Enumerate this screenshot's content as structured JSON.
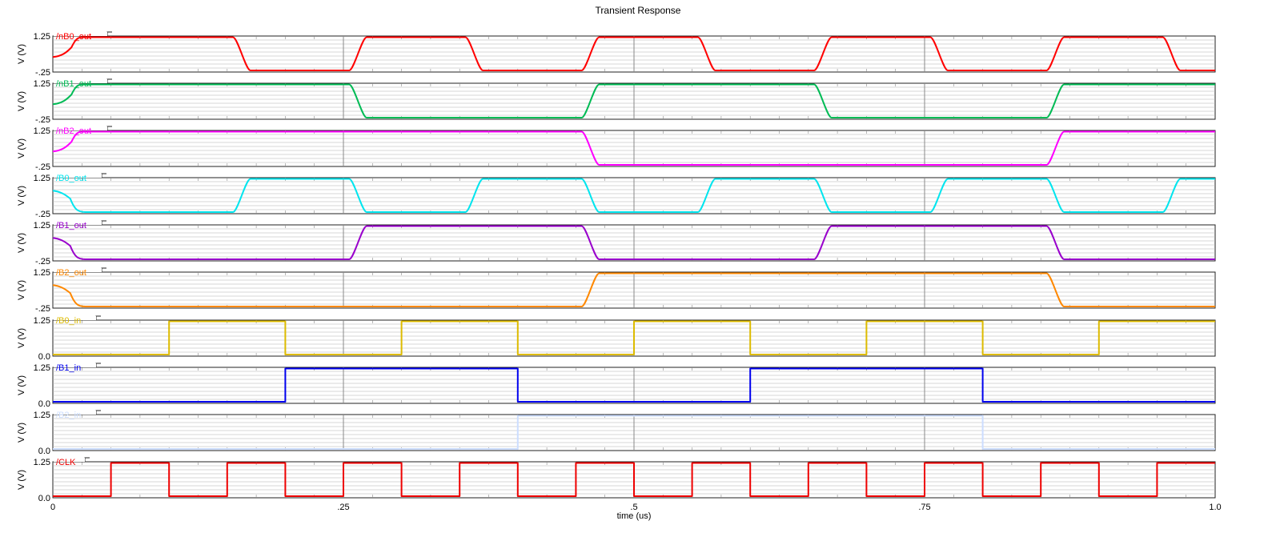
{
  "title": "Transient Response",
  "chart_data": {
    "type": "line",
    "title": "Transient Response",
    "xlabel": "time (us)",
    "xlim": [
      0,
      1.0
    ],
    "x_ticks": [
      "0",
      ".25",
      ".5",
      ".75",
      "1.0"
    ],
    "x_tick_values": [
      0,
      0.25,
      0.5,
      0.75,
      1.0
    ],
    "grid": true,
    "panels": [
      {
        "name": "/nB0_out",
        "color": "#ff0000",
        "ylabel": "V (V)",
        "ytop": "1.25",
        "ybot": "-.25",
        "ylim": [
          -0.25,
          1.25
        ],
        "kind": "analog",
        "initial_ramp": "up",
        "transitions": [
          [
            0.155,
            0
          ],
          [
            0.255,
            1
          ],
          [
            0.355,
            0
          ],
          [
            0.455,
            1
          ],
          [
            0.555,
            0
          ],
          [
            0.655,
            1
          ],
          [
            0.755,
            0
          ],
          [
            0.855,
            1
          ],
          [
            0.955,
            0
          ]
        ]
      },
      {
        "name": "/nB1_out",
        "color": "#00bb55",
        "ylabel": "V (V)",
        "ytop": "1.25",
        "ybot": "-.25",
        "ylim": [
          -0.25,
          1.25
        ],
        "kind": "analog",
        "initial_ramp": "up",
        "transitions": [
          [
            0.255,
            0
          ],
          [
            0.455,
            1
          ],
          [
            0.655,
            0
          ],
          [
            0.855,
            1
          ]
        ]
      },
      {
        "name": "/nB2_out",
        "color": "#ff00ff",
        "ylabel": "V (V)",
        "ytop": "1.25",
        "ybot": "-.25",
        "ylim": [
          -0.25,
          1.25
        ],
        "kind": "analog",
        "initial_ramp": "up",
        "transitions": [
          [
            0.455,
            0
          ],
          [
            0.855,
            1
          ]
        ]
      },
      {
        "name": "/B0_out",
        "color": "#00e5ee",
        "ylabel": "V (V)",
        "ytop": "1.25",
        "ybot": "-.25",
        "ylim": [
          -0.25,
          1.25
        ],
        "kind": "analog",
        "initial_ramp": "down",
        "transitions": [
          [
            0.155,
            1
          ],
          [
            0.255,
            0
          ],
          [
            0.355,
            1
          ],
          [
            0.455,
            0
          ],
          [
            0.555,
            1
          ],
          [
            0.655,
            0
          ],
          [
            0.755,
            1
          ],
          [
            0.855,
            0
          ],
          [
            0.955,
            1
          ]
        ]
      },
      {
        "name": "/B1_out",
        "color": "#9900cc",
        "ylabel": "V (V)",
        "ytop": "1.25",
        "ybot": "-.25",
        "ylim": [
          -0.25,
          1.25
        ],
        "kind": "analog",
        "initial_ramp": "down",
        "transitions": [
          [
            0.255,
            1
          ],
          [
            0.455,
            0
          ],
          [
            0.655,
            1
          ],
          [
            0.855,
            0
          ]
        ]
      },
      {
        "name": "/B2_out",
        "color": "#ff8800",
        "ylabel": "V (V)",
        "ytop": "1.25",
        "ybot": "-.25",
        "ylim": [
          -0.25,
          1.25
        ],
        "kind": "analog",
        "initial_ramp": "down",
        "transitions": [
          [
            0.455,
            1
          ],
          [
            0.855,
            0
          ]
        ]
      },
      {
        "name": "/B0_in",
        "color": "#ddbb00",
        "ylabel": "V (V)",
        "ytop": "1.25",
        "ybot": "0.0",
        "ylim": [
          0.0,
          1.25
        ],
        "kind": "digital",
        "initial": 0,
        "transitions": [
          [
            0.1,
            1
          ],
          [
            0.2,
            0
          ],
          [
            0.3,
            1
          ],
          [
            0.4,
            0
          ],
          [
            0.5,
            1
          ],
          [
            0.6,
            0
          ],
          [
            0.7,
            1
          ],
          [
            0.8,
            0
          ],
          [
            0.9,
            1
          ]
        ]
      },
      {
        "name": "/B1_in",
        "color": "#0000ee",
        "ylabel": "V (V)",
        "ytop": "1.25",
        "ybot": "0.0",
        "ylim": [
          0.0,
          1.25
        ],
        "kind": "digital",
        "initial": 0,
        "transitions": [
          [
            0.2,
            1
          ],
          [
            0.4,
            0
          ],
          [
            0.6,
            1
          ],
          [
            0.8,
            0
          ]
        ]
      },
      {
        "name": "/B2_in",
        "color": "#ccddff",
        "ylabel": "V (V)",
        "ytop": "1.25",
        "ybot": "0.0",
        "ylim": [
          0.0,
          1.25
        ],
        "kind": "digital",
        "initial": 0,
        "transitions": [
          [
            0.4,
            1
          ],
          [
            0.8,
            0
          ]
        ]
      },
      {
        "name": "/CLK",
        "color": "#ee0000",
        "ylabel": "V (V)",
        "ytop": "1.25",
        "ybot": "0.0",
        "ylim": [
          0.0,
          1.25
        ],
        "kind": "digital",
        "initial": 0,
        "transitions": [
          [
            0.05,
            1
          ],
          [
            0.1,
            0
          ],
          [
            0.15,
            1
          ],
          [
            0.2,
            0
          ],
          [
            0.25,
            1
          ],
          [
            0.3,
            0
          ],
          [
            0.35,
            1
          ],
          [
            0.4,
            0
          ],
          [
            0.45,
            1
          ],
          [
            0.5,
            0
          ],
          [
            0.55,
            1
          ],
          [
            0.6,
            0
          ],
          [
            0.65,
            1
          ],
          [
            0.7,
            0
          ],
          [
            0.75,
            1
          ],
          [
            0.8,
            0
          ],
          [
            0.85,
            1
          ],
          [
            0.9,
            0
          ],
          [
            0.95,
            1
          ]
        ]
      }
    ]
  }
}
